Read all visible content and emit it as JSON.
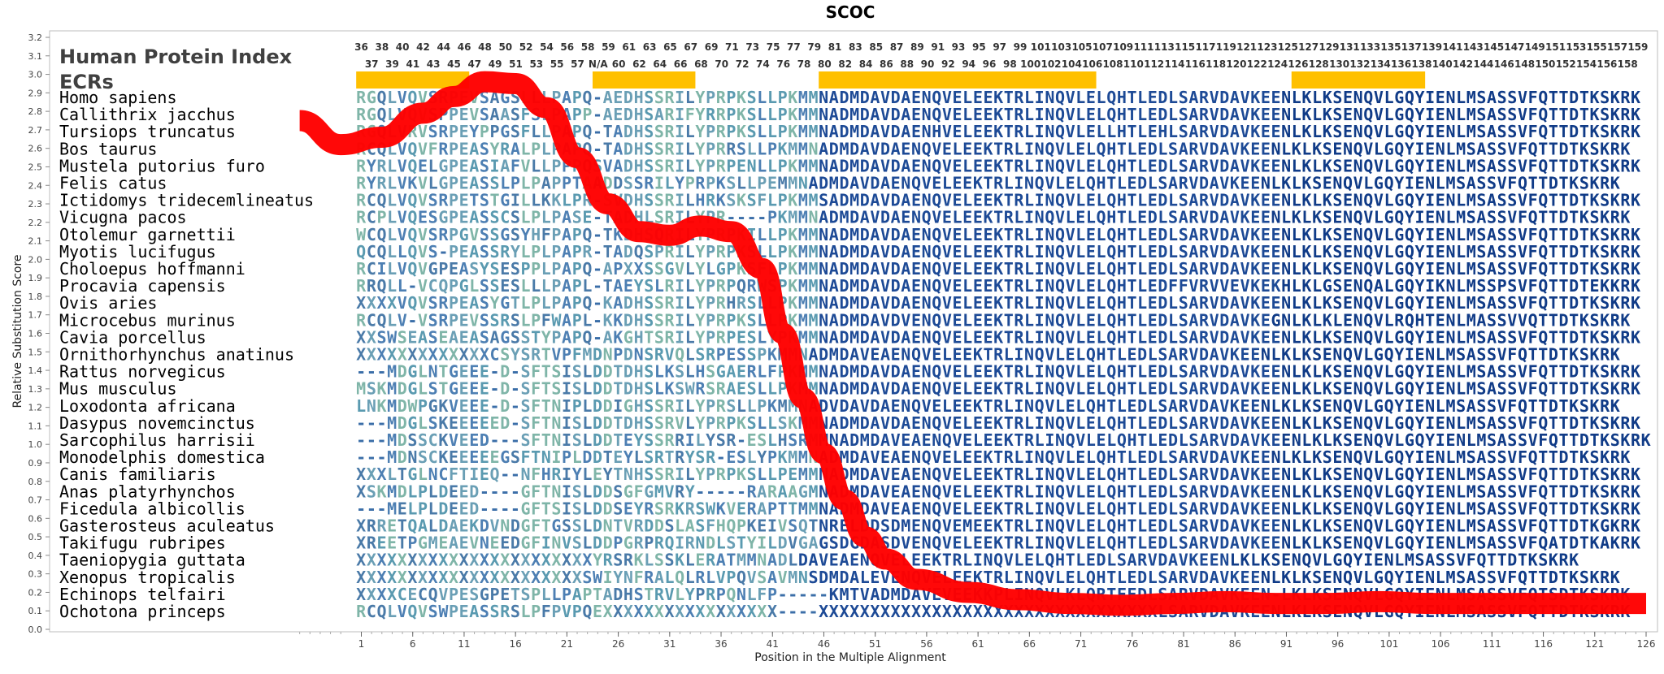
{
  "chart_data": {
    "type": "line",
    "title": "SCOC",
    "xlabel": "Position in the Multiple Alignment",
    "ylabel": "Relative Substitution Score",
    "xlim": [
      -5,
      126
    ],
    "ylim": [
      0.0,
      3.2
    ],
    "grid": false,
    "x_ticks": [
      1,
      6,
      11,
      16,
      21,
      26,
      31,
      36,
      41,
      46,
      51,
      56,
      61,
      66,
      71,
      76,
      81,
      86,
      91,
      96,
      101,
      106,
      111,
      116,
      121,
      126
    ],
    "y_ticks": [
      "0.0",
      "0.1",
      "0.2",
      "0.3",
      "0.4",
      "0.5",
      "0.6",
      "0.7",
      "0.8",
      "0.9",
      "1.0",
      "1.1",
      "1.2",
      "1.3",
      "1.4",
      "1.5",
      "1.6",
      "1.7",
      "1.8",
      "1.9",
      "2.0",
      "2.1",
      "2.2",
      "2.3",
      "2.4",
      "2.5",
      "2.6",
      "2.7",
      "2.8",
      "2.9",
      "3.0",
      "3.1",
      "3.2"
    ],
    "index_label": "Human Protein Index",
    "ecr_label": "ECRs",
    "index_row1": [
      "36",
      "38",
      "40",
      "42",
      "44",
      "46",
      "48",
      "50",
      "52",
      "54",
      "56",
      "58",
      "59",
      "61",
      "63",
      "65",
      "67",
      "69",
      "71",
      "73",
      "75",
      "77",
      "79",
      "81",
      "83",
      "85",
      "87",
      "89",
      "91",
      "93",
      "95",
      "97",
      "99",
      "101",
      "103",
      "105",
      "107",
      "109",
      "111",
      "113",
      "115",
      "117",
      "119",
      "121",
      "123",
      "125",
      "127",
      "129",
      "131",
      "133",
      "135",
      "137",
      "139",
      "141",
      "143",
      "145",
      "147",
      "149",
      "151",
      "153",
      "155",
      "157",
      "159"
    ],
    "index_row2": [
      "37",
      "39",
      "41",
      "43",
      "45",
      "47",
      "49",
      "51",
      "53",
      "55",
      "57",
      "N/A",
      "60",
      "62",
      "64",
      "66",
      "68",
      "70",
      "72",
      "74",
      "76",
      "78",
      "80",
      "82",
      "84",
      "86",
      "88",
      "90",
      "92",
      "94",
      "96",
      "98",
      "100",
      "102",
      "104",
      "106",
      "108",
      "110",
      "112",
      "114",
      "116",
      "118",
      "120",
      "122",
      "124",
      "126",
      "128",
      "130",
      "132",
      "134",
      "136",
      "138",
      "140",
      "142",
      "144",
      "146",
      "148",
      "150",
      "152",
      "154",
      "156",
      "158"
    ],
    "ecr_regions": [
      [
        1,
        11
      ],
      [
        24,
        33
      ],
      [
        46,
        72
      ],
      [
        92,
        104
      ]
    ],
    "ecr_color": "#ffc000",
    "line_color": "#ff0000",
    "series": [
      {
        "x": [
          -5,
          -1,
          3,
          7,
          10,
          13,
          16,
          19,
          22,
          25,
          28,
          31,
          34,
          37,
          40,
          42,
          44,
          46,
          48,
          50,
          52,
          55,
          60,
          65,
          70,
          75,
          80,
          85,
          90,
          95,
          100,
          105,
          110,
          115,
          120,
          126
        ],
        "y": [
          2.75,
          2.62,
          2.66,
          2.79,
          2.88,
          2.96,
          2.95,
          2.82,
          2.55,
          2.3,
          2.15,
          2.13,
          2.18,
          2.15,
          1.95,
          1.6,
          1.25,
          0.95,
          0.7,
          0.5,
          0.38,
          0.27,
          0.2,
          0.16,
          0.14,
          0.13,
          0.14,
          0.15,
          0.14,
          0.14,
          0.15,
          0.14,
          0.14,
          0.14,
          0.14,
          0.14
        ]
      }
    ],
    "species": [
      {
        "name": "Homo sapiens",
        "seq": "RGQLVQVSRPEVSAGSLLLPAPQ-AEDHSSRILYPRPKSLLPKMMNADMDAVDAENQVELEEKTRLINQVLELQHTLEDLSARVDAVKEENLKLKSENQVLGQYIENLMSASSVFQTTDTKSKRK"
      },
      {
        "name": "Callithrix jacchus",
        "seq": "RGQLVQVSPPEVSAASFSLPAPP-AEDHSARIFYRRPKSLLPKMMNADMDAVDAENQVELEEKTRLINQVLELQHTLEDLSARVDAVKEENLKLKSENQVLGQYIENLMSASSVFQTTDTKSKRK"
      },
      {
        "name": "Tursiops truncatus",
        "seq": "RGQLVRVSRPEYPPGSFLLPAPQ-TADHSSRILYPRPKSLLPKMMNADMDAVDAENHVELEEKTRLINQVLELLHTLEHLSARVDAVKEENLKLKSENQVLGQYIENLMSASSVFQTTDTKSKRK"
      },
      {
        "name": "Bos taurus",
        "seq": "RCQLVQVFRPEASYRALPLPAPQ-TADHSSRILYPRRSLLPKMMNADMDAVDAENQVELEEKTRLINQVLELQHTLEDLSARVDAVKEENLKLKSENQVLGQYIENLMSASSVFQTTDTKSKRK"
      },
      {
        "name": "Mustela putorius furo",
        "seq": "RYRLVQELGPEASIAFVLLPPPQSVADHSSRILYPRPENLLPKMMNADMDAVDAENQVELEEKTRLINQVLELQHTLEDLSARVDAVKEENLKLKSENQVLGQYIENLMSASSVFQTTDTKSKRK"
      },
      {
        "name": "Felis catus",
        "seq": "RYRLVKVLGPEASSLPLPAPPTAADDSSRILYPRPKSLLPEMMNADMDAVDAENQVELEEKTRLINQVLELQHTLEDLSARVDAVKEENLKLKSENQVLGQYIENLMSASSVFQTTDTKSKRK"
      },
      {
        "name": "Ictidomys tridecemlineatus",
        "seq": "RCQLVQVSRPETSTGILLKKLPR-SVDHSSRILHRKSKSFLPKMMSADMDAVDAENQVELEEKTRLINQVLELQHTLEDLSARVDAVKEENLKLKSENQVLGQYIENLMSASSVFQTTDTKSKRK"
      },
      {
        "name": "Vicugna pacos",
        "seq": "RCPLVQESGPEASSCSLPLPASE-TADHLSRILYPR----PKMMNADMDAVDAENQVELEEKTRLINQVLELQHTLEDLSARVDAVKEENLKLKSENQVLGQYIENLMSASSVFQTTDTKSKRK"
      },
      {
        "name": "Otolemur garnettii",
        "seq": "WCQLVQVSRPGVSSGSYHFPAPQ-TKDHSQRILYPRPKILLPKMMNADMDAVDAENQVELEEKTRLINQVLELQHTLEDLSARVDAVKEENLKLKSENQVLGQYIENLMSASSVFQTTDTKSKRK"
      },
      {
        "name": "Myotis lucifugus",
        "seq": "QCQLLQVS-PEASSRYLPLPAPR-TADQSPRILYPRPKSLLPKMMNADMDAVDAENQVELEEKTRLINQVLELQHTLEDLSARVDAVKEENLKLKSENQVLGQYIENLMSASSVFQTTDTKSKRK"
      },
      {
        "name": "Choloepus hoffmanni",
        "seq": "RCILVQVGPEASYSESPPLPAPQ-APXXSSGVLYLGPKSFLPKMMNADMDAVDAENQVELEEKTRLINQVLELQHTLEDLSARVDAVKEENLKLKSENQVLGQYIENLMSASSVFQTTDTKSKRK"
      },
      {
        "name": "Procavia capensis",
        "seq": "RRQLL-VCQPGLSSESLLLPAPL-TAEYSLRILYPRPQRWSPKMMNADMDAVDAENQVELEEKTRLINQVLELQHTLEDFFVRVVEVKEKHLKLGSENQALGQYIKNLMSSPSVFQTTDTEKKRK"
      },
      {
        "name": "Ovis aries",
        "seq": "XXXXVQVSRPEASYGTLPLPAPQ-KADHSSRILYPRHRSLLPKMMNADMDAVDAENQVELEEKTRLINQVLELQHTLEDLSARVDAVKEENLKLKSENQVLGQYIENLMSASSVFQTTDTKSKRK"
      },
      {
        "name": "Microcebus murinus",
        "seq": "RCQLV-VSRPEVSSRSLPFWAPL-KKDHSSRILYPRPKSLLPKMMNADMDAVDVENQVELEEKTRLINQVLELQHTLEDLSARVDAVKEGNLKLKLENQVLRQHTENLMASSVVQTTDTKSKRK"
      },
      {
        "name": "Cavia porcellus",
        "seq": "XXSWSEASEAEASAGSSTYPAPQ-AKGHTSRILYPRPESLYPKMMNADMDAVDAENQVELEEKTRLINQVLELQHTLEDLSARVDAVKEENLKLKSENQVLGQYIENLMSASSVFQTTDTKSKRK"
      },
      {
        "name": "Ornithorhynchus anatinus",
        "seq": "XXXXXXXXXXXXXCSYSRTVPFMDNPDNSRVQLSRPESSPKMMNADMDAVEAENQVELEEKTRLINQVLELQHTLEDLSARVDAVKEENLKLKSENQVLGQYIENLMSASSVFQTTDTKSKRK"
      },
      {
        "name": "Rattus norvegicus",
        "seq": "---MDGLNTGEEE-D-SFTSISLDDTDHSLKSLHSGAERLFPKMMNADMDAVDAENQVELEEKTRLINQVLELQHTLEDLSARVDAVKEENLKLKSENQVLGQYIENLMSASSVFQTTDTKSKRK"
      },
      {
        "name": "Mus musculus",
        "seq": "MSKMDGLSTGEEE-D-SFTSISLDDTDHSLKSWRSRAESLLPKMMNADMDAVDAENQVELEEKTRLINQVLELQHTLEDLSARVDAVKEENLKLKSENQVLGQYIENLMSASSVFQTTDTKSKRK"
      },
      {
        "name": "Loxodonta africana",
        "seq": "LNKMDWPGKVEEE-D-SFTNIPLDDIGHSSRILYPRSLLPKMMNADVDAVDAENQVELEEKTRLINQVLELQHTLEDLSARVDAVKEENLKLKSENQVLGQYIENLMSASSVFQTTDTKSKRK"
      },
      {
        "name": "Dasypus novemcinctus",
        "seq": "---MDGLSKEEEEED-SFTNISLDDTDHSSRVLYPRPKSLLSKMMNADMDAVDAENQVELEEKTRLINQVLELQHTLEDLSARVDAVKEENLKLKSENQVLGQYIENLMSASSVFQTTDTKSKRK"
      },
      {
        "name": "Sarcophilus harrisii",
        "seq": "---MDSSCKVEED---SFTNISLDDTEYSSRRILYSR-ESLHSRMMNADMDAVEAENQVELEEKTRLINQVLELQHTLEDLSARVDAVKEENLKLKSENQVLGQYIENLMSASSVFQTTDTKSKRK"
      },
      {
        "name": "Monodelphis domestica",
        "seq": "---MDNSCKEEEEEGSFTNIPLDDTEYLSRTRYSR-ESLYPKMMNADMDAVEAENQVELEEKTRLINQVLELQHTLEDLSARVDAVKEENLKLKSENQVLGQYIENLMSASSVFQTTDTKSKRK"
      },
      {
        "name": "Canis familiaris",
        "seq": "XXXLTGLNCFTIEQ--NFHRIYLEYTNHSSRILYPRPKSLLPEMMNADMDAVEAENQVELEEKTRLINQVLELQHTLEDLSARVDAVKEENLKLKSENQVLGQYIENLMSASSVFQTTDTKSKRK"
      },
      {
        "name": "Anas platyrhynchos",
        "seq": "XSKMDLPLDEED----GFTNISLDDSGFGMVRY-----RARAAGMNADMDAVEAENQVELEEKTRLINQVLELQHTLEDLSARVDAVKEENLKLKSENQVLGQYIENLMSASSVFQTTDTKSKRK"
      },
      {
        "name": "Ficedula albicollis",
        "seq": "---MELPLDEED----GFTSISLDDSEYRSRKRSWKVERAPTTMMNADMDAVEAENQVELEEKTRLINQVLELQHTLEDLSARVDAVKEENLKLKSENQVLGQYIENLMSASSVFQTTDTKSKRK"
      },
      {
        "name": "Gasterosteus aculeatus",
        "seq": "XRRETQALDAEKDVNDGFTGSSLDNTVRDDSLASFHQPKEIVSQTNRELDDSDMENQVEMEEKTRLINQVLELQHTLEDLSARVDAVKEENLKLKSENQVLGQYIENLMSASSVFQTTDTKGKRK"
      },
      {
        "name": "Takifugu rubripes",
        "seq": "XREETPGMEAEVNEEDGFINVSLDDPGRPRQIRNDLSTYILDVGAGSDGDASDVENQVELEEKTRLINQVLELQHTLEDLSARVDAVKEENLKLKSENQVLGQYIENLMSASSVFQATDTKAKRK"
      },
      {
        "name": "Taeniopygia guttata",
        "seq": "XXXXXXXXXXXXXXXXXXXXXXXYRSRKLSSKLERATMMNADLDAVEAENQVELEEKTRLINQVLELQHTLEDLSARVDAVKEENLKLKSENQVLGQYIENLMSASSVFQTTDTKSKRK"
      },
      {
        "name": "Xenopus tropicalis",
        "seq": "XXXXXXXXXXXXXXXXXXXXXXSWIYNFRALQLRLVPQVSAVMNSDMDALEVENQVELEEKTRLINQVLELQHTLEDLSARVDAVKEENLKLKSENQVLGQYIENLMSASSVFQTTDTKSKRK"
      },
      {
        "name": "Echinops telfairi",
        "seq": "XXXXCECQVPESGPETSPLLPAPTADHSTRVLYPRPQNLFP-----KMTVADMDAVEVEEKKPLINQVLKLQRTFEDLSARVDAVKEEN-LKLKSENQVLGQYIENLMSASSVFQTSDTKSKRK"
      },
      {
        "name": "Ochotona princeps",
        "seq": "RCQLVQVSWPEASSRSLPFPVPQEXXXXXXXXXXXXXXXXX----XXXXXXXXXXXXXXXXXXXXXXXXXXXXXXXXXLSARVDAVKEENLKLKSENQVLGQYIENLMSASSVFQTTDTKSKRK"
      }
    ]
  }
}
